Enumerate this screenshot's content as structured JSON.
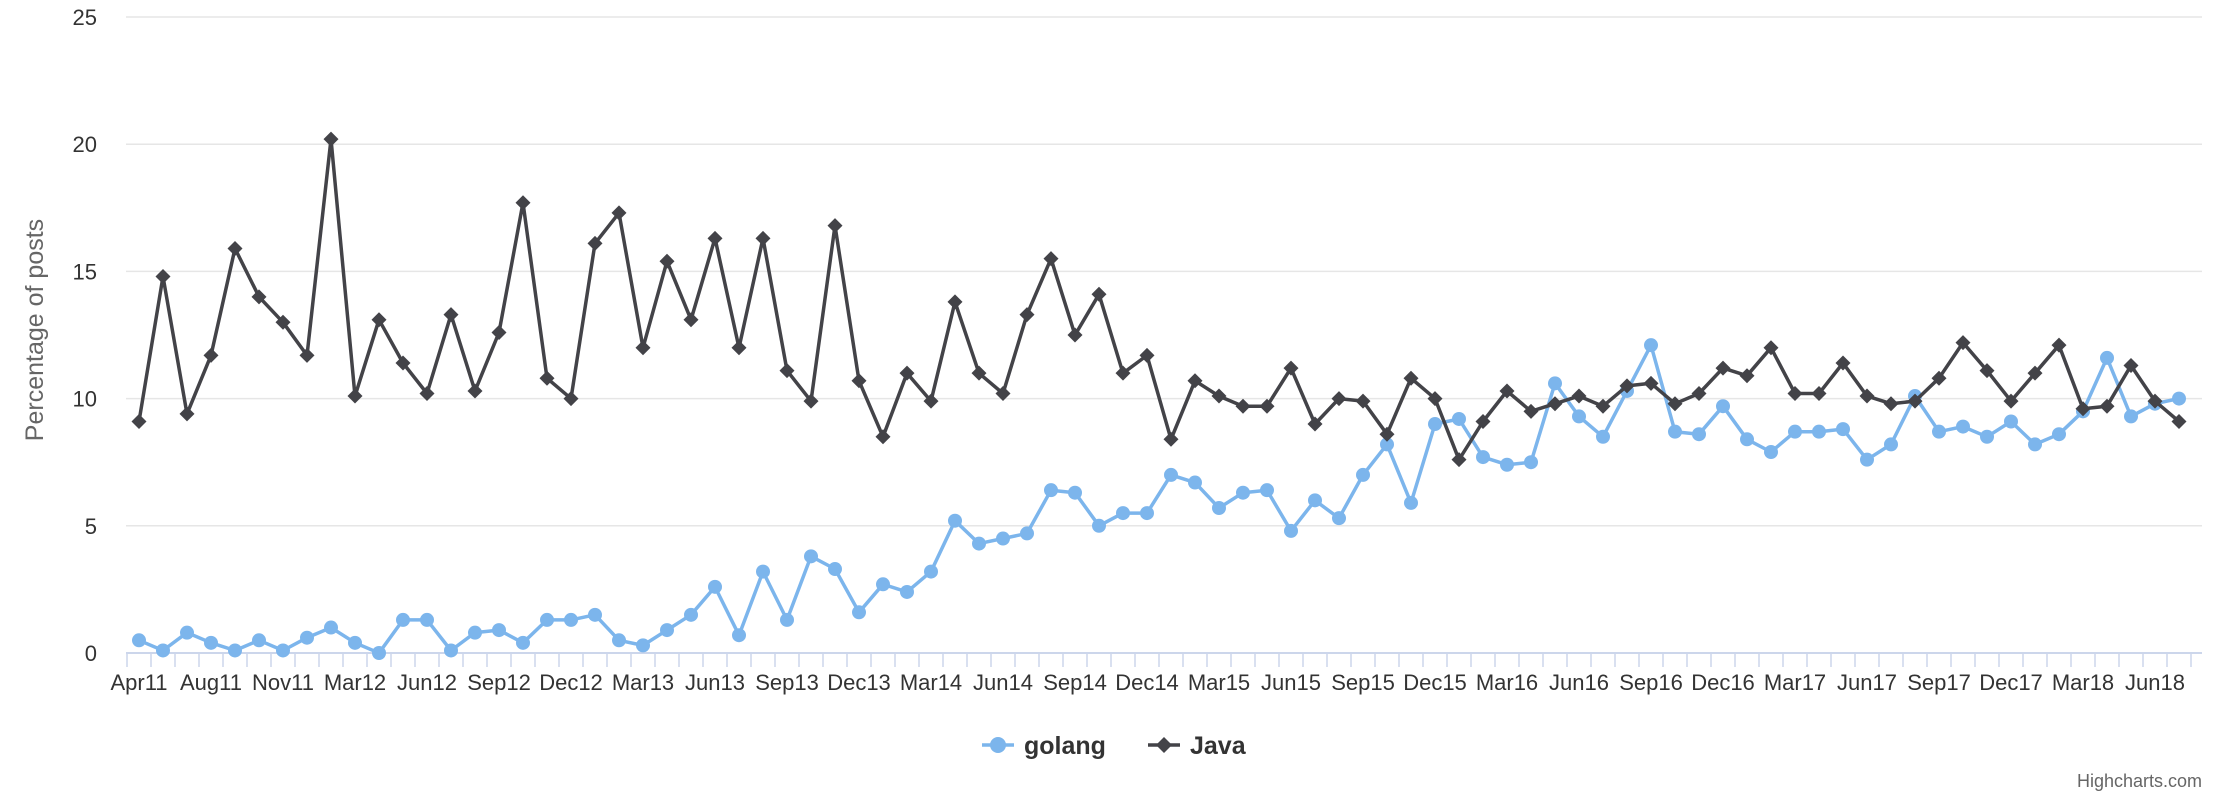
{
  "chart_data": {
    "type": "line",
    "ylabel": "Percentage of posts",
    "ylim": [
      0,
      25
    ],
    "yticks": [
      0,
      5,
      10,
      15,
      20,
      25
    ],
    "grid": true,
    "legend_position": "bottom-center",
    "x_labels": [
      "Apr11",
      "Aug11",
      "Nov11",
      "Mar12",
      "Jun12",
      "Sep12",
      "Dec12",
      "Mar13",
      "Jun13",
      "Sep13",
      "Dec13",
      "Mar14",
      "Jun14",
      "Sep14",
      "Dec14",
      "Mar15",
      "Jun15",
      "Sep15",
      "Dec15",
      "Mar16",
      "Jun16",
      "Sep16",
      "Dec16",
      "Mar17",
      "Jun17",
      "Sep17",
      "Dec17",
      "Mar18",
      "Jun18"
    ],
    "series": [
      {
        "name": "golang",
        "color": "#7cb5ec",
        "marker": "circle",
        "values": [
          0.5,
          0.1,
          0.8,
          0.4,
          0.1,
          0.5,
          0.1,
          0.6,
          1.0,
          0.4,
          0.0,
          1.3,
          1.3,
          0.1,
          0.8,
          0.9,
          0.4,
          1.3,
          1.3,
          1.5,
          0.5,
          0.3,
          0.9,
          1.5,
          2.6,
          0.7,
          3.2,
          1.3,
          3.8,
          3.3,
          1.6,
          2.7,
          2.4,
          3.2,
          5.2,
          4.3,
          4.5,
          4.7,
          6.4,
          6.3,
          5.0,
          5.5,
          5.5,
          7.0,
          6.7,
          5.7,
          6.3,
          6.4,
          4.8,
          6.0,
          5.3,
          7.0,
          8.2,
          5.9,
          9.0,
          9.2,
          7.7,
          7.4,
          7.5,
          10.6,
          9.3,
          8.5,
          10.3,
          12.1,
          8.7,
          8.6,
          9.7,
          8.4,
          7.9,
          8.7,
          8.7,
          8.8,
          7.6,
          8.2,
          10.1,
          8.7,
          8.9,
          8.5,
          9.1,
          8.2,
          8.6,
          9.5,
          11.6,
          9.3,
          9.8,
          10.0
        ]
      },
      {
        "name": "Java",
        "color": "#434348",
        "marker": "diamond",
        "values": [
          9.1,
          14.8,
          9.4,
          11.7,
          15.9,
          14.0,
          13.0,
          11.7,
          20.2,
          10.1,
          13.1,
          11.4,
          10.2,
          13.3,
          10.3,
          12.6,
          17.7,
          10.8,
          10.0,
          16.1,
          17.3,
          12.0,
          15.4,
          13.1,
          16.3,
          12.0,
          16.3,
          11.1,
          9.9,
          16.8,
          10.7,
          8.5,
          11.0,
          9.9,
          13.8,
          11.0,
          10.2,
          13.3,
          15.5,
          12.5,
          14.1,
          11.0,
          11.7,
          8.4,
          10.7,
          10.1,
          9.7,
          9.7,
          11.2,
          9.0,
          10.0,
          9.9,
          8.6,
          10.8,
          10.0,
          7.6,
          9.1,
          10.3,
          9.5,
          9.8,
          10.1,
          9.7,
          10.5,
          10.6,
          9.8,
          10.2,
          11.2,
          10.9,
          12.0,
          10.2,
          10.2,
          11.4,
          10.1,
          9.8,
          9.9,
          10.8,
          12.2,
          11.1,
          9.9,
          11.0,
          12.1,
          9.6,
          9.7,
          11.3,
          9.9,
          9.1
        ]
      }
    ]
  },
  "credits": "Highcharts.com"
}
